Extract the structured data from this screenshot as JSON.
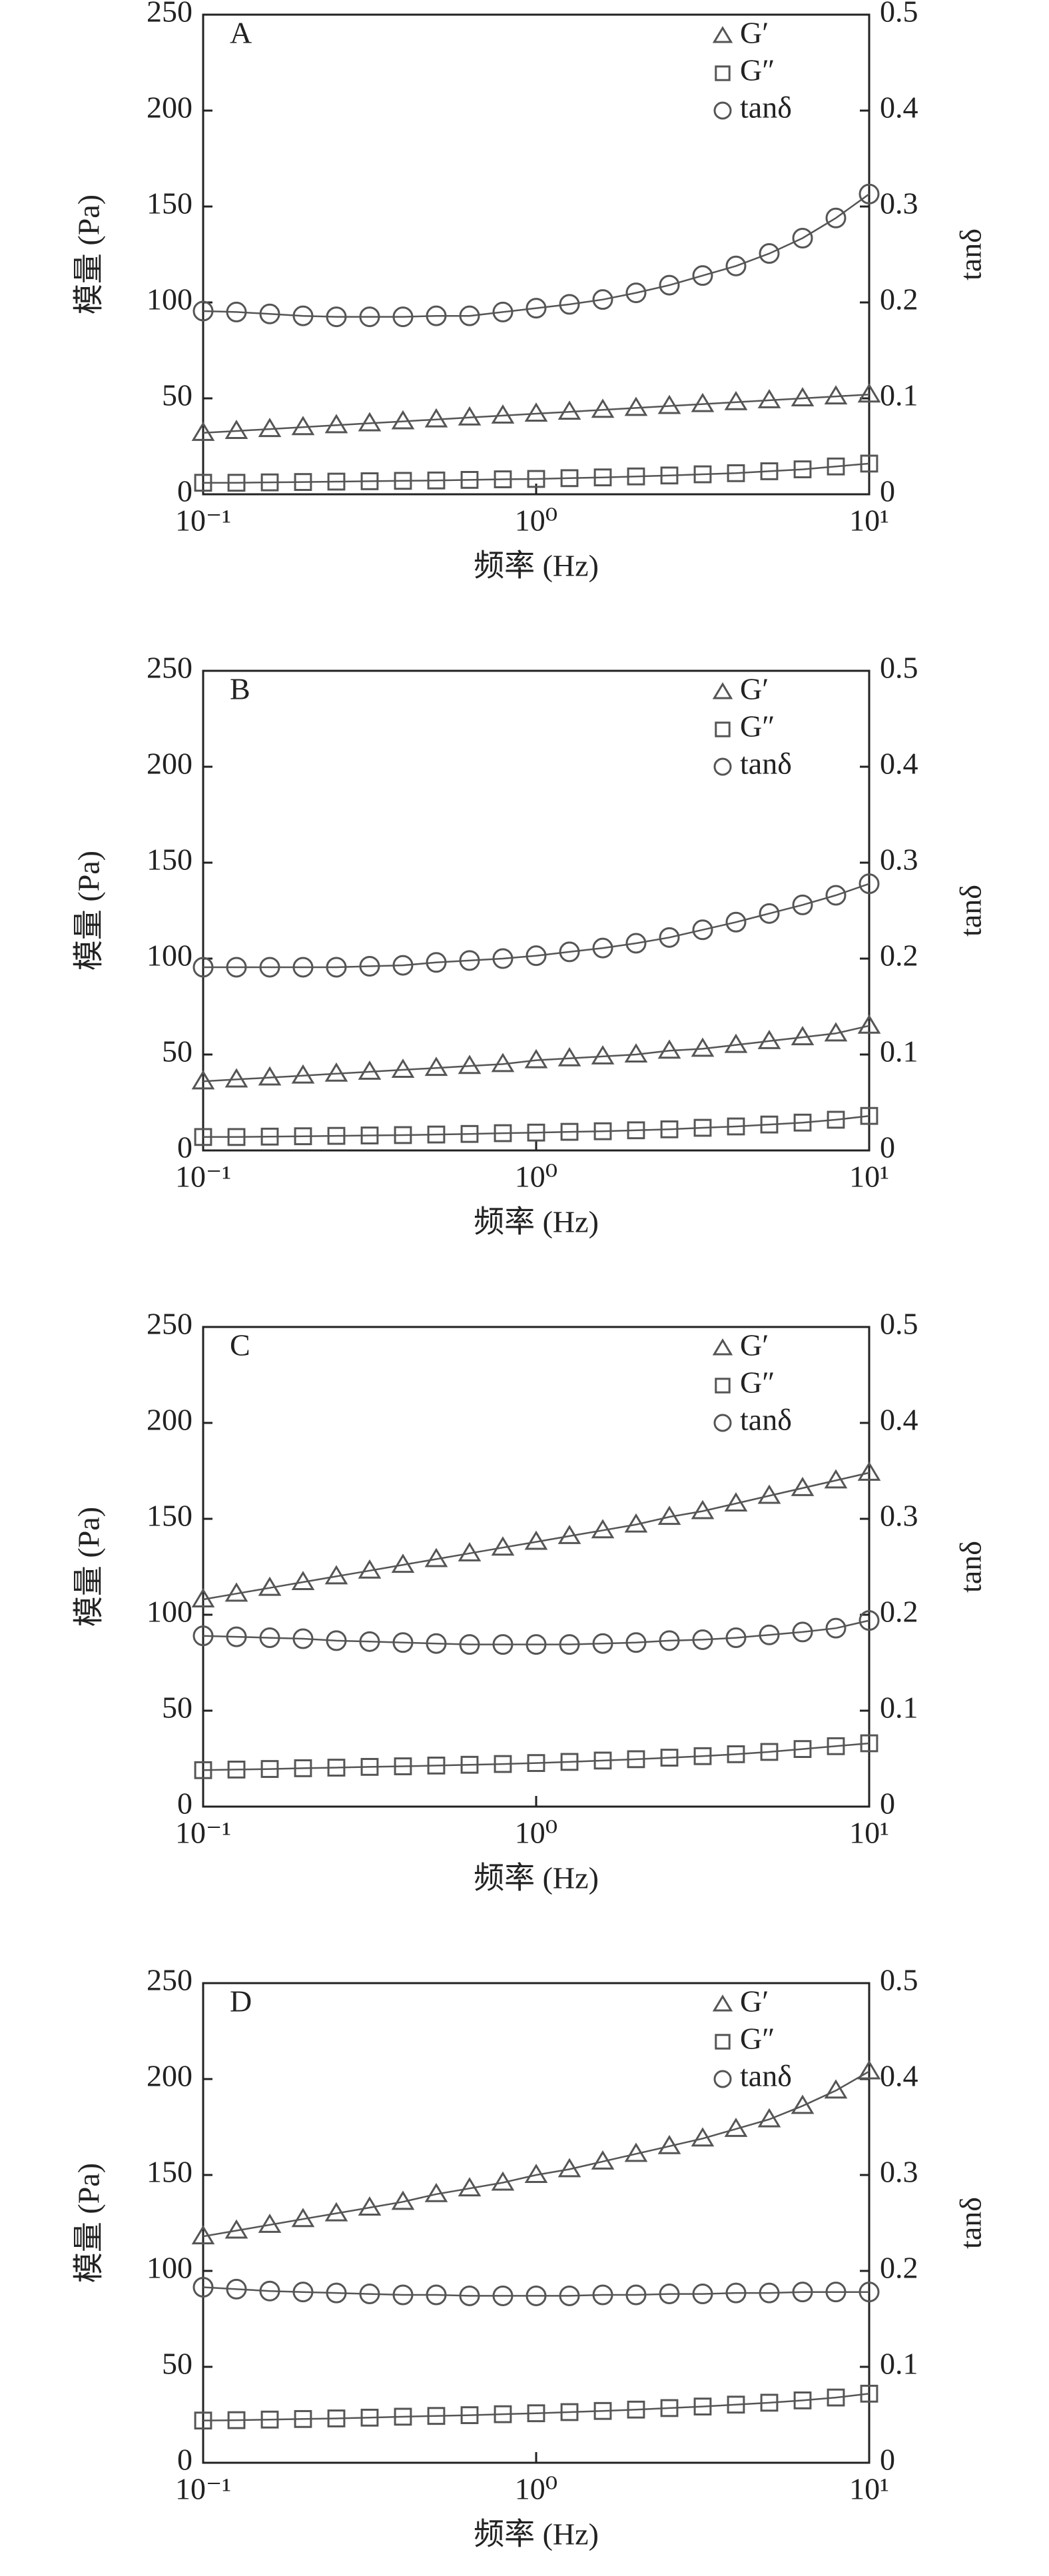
{
  "chart_data": [
    {
      "type": "line",
      "panel_label": "A",
      "xlabel": "频率 (Hz)",
      "ylabel": "模量 (Pa)",
      "y2label": "tanδ",
      "xscale": "log",
      "x": [
        0.1,
        0.1259,
        0.1585,
        0.1995,
        0.2512,
        0.3162,
        0.3981,
        0.5012,
        0.631,
        0.7943,
        1,
        1.259,
        1.585,
        1.995,
        2.512,
        3.162,
        3.981,
        5.012,
        6.31,
        7.943,
        10
      ],
      "xlim": [
        0.1,
        10
      ],
      "xticks": [
        {
          "value": 0.1,
          "label": "10⁻¹"
        },
        {
          "value": 1,
          "label": "10⁰"
        },
        {
          "value": 10,
          "label": "10¹"
        }
      ],
      "ylim": [
        0,
        250
      ],
      "yticks": [
        0,
        50,
        100,
        150,
        200,
        250
      ],
      "y2lim": [
        0,
        0.5
      ],
      "y2ticks": [
        0,
        0.1,
        0.2,
        0.3,
        0.4,
        0.5
      ],
      "legend": "upper right",
      "series": [
        {
          "name": "G′",
          "marker": "triangle",
          "color": "#555555",
          "values": [
            32,
            33,
            34,
            35,
            36,
            37,
            38,
            39,
            40,
            41,
            42,
            43,
            44,
            45,
            46,
            47,
            48,
            49,
            50,
            51,
            52
          ]
        },
        {
          "name": "G″",
          "marker": "square",
          "color": "#555555",
          "values": [
            6,
            6,
            6.2,
            6.4,
            6.6,
            6.8,
            7,
            7.2,
            7.5,
            7.8,
            8,
            8.4,
            8.8,
            9.3,
            9.8,
            10.4,
            11,
            12,
            13,
            14.5,
            16
          ]
        },
        {
          "name": "tanδ",
          "marker": "circle",
          "color": "#555555",
          "axis": "y2",
          "values": [
            0.191,
            0.19,
            0.188,
            0.186,
            0.185,
            0.185,
            0.185,
            0.186,
            0.186,
            0.19,
            0.194,
            0.198,
            0.203,
            0.21,
            0.218,
            0.228,
            0.238,
            0.251,
            0.267,
            0.288,
            0.313
          ]
        }
      ]
    },
    {
      "type": "line",
      "panel_label": "B",
      "xlabel": "频率 (Hz)",
      "ylabel": "模量 (Pa)",
      "y2label": "tanδ",
      "xscale": "log",
      "x": [
        0.1,
        0.1259,
        0.1585,
        0.1995,
        0.2512,
        0.3162,
        0.3981,
        0.5012,
        0.631,
        0.7943,
        1,
        1.259,
        1.585,
        1.995,
        2.512,
        3.162,
        3.981,
        5.012,
        6.31,
        7.943,
        10
      ],
      "xlim": [
        0.1,
        10
      ],
      "xticks": [
        {
          "value": 0.1,
          "label": "10⁻¹"
        },
        {
          "value": 1,
          "label": "10⁰"
        },
        {
          "value": 10,
          "label": "10¹"
        }
      ],
      "ylim": [
        0,
        250
      ],
      "yticks": [
        0,
        50,
        100,
        150,
        200,
        250
      ],
      "y2lim": [
        0,
        0.5
      ],
      "y2ticks": [
        0,
        0.1,
        0.2,
        0.3,
        0.4,
        0.5
      ],
      "legend": "upper right",
      "series": [
        {
          "name": "G′",
          "marker": "triangle",
          "color": "#555555",
          "values": [
            36,
            37,
            38,
            39,
            40,
            41,
            42,
            43,
            44,
            45,
            47,
            48,
            49,
            50,
            52,
            53,
            55,
            57,
            59,
            61,
            65
          ]
        },
        {
          "name": "G″",
          "marker": "square",
          "color": "#555555",
          "values": [
            7,
            7,
            7.2,
            7.4,
            7.6,
            7.8,
            8,
            8.3,
            8.6,
            9,
            9.3,
            9.7,
            10,
            10.5,
            11,
            11.8,
            12.5,
            13.5,
            14.5,
            16,
            18
          ]
        },
        {
          "name": "tanδ",
          "marker": "circle",
          "color": "#555555",
          "axis": "y2",
          "values": [
            0.191,
            0.191,
            0.191,
            0.191,
            0.191,
            0.192,
            0.193,
            0.196,
            0.198,
            0.2,
            0.203,
            0.207,
            0.211,
            0.216,
            0.222,
            0.23,
            0.238,
            0.247,
            0.256,
            0.266,
            0.278
          ]
        }
      ]
    },
    {
      "type": "line",
      "panel_label": "C",
      "xlabel": "频率 (Hz)",
      "ylabel": "模量 (Pa)",
      "y2label": "tanδ",
      "xscale": "log",
      "x": [
        0.1,
        0.1259,
        0.1585,
        0.1995,
        0.2512,
        0.3162,
        0.3981,
        0.5012,
        0.631,
        0.7943,
        1,
        1.259,
        1.585,
        1.995,
        2.512,
        3.162,
        3.981,
        5.012,
        6.31,
        7.943,
        10
      ],
      "xlim": [
        0.1,
        10
      ],
      "xticks": [
        {
          "value": 0.1,
          "label": "10⁻¹"
        },
        {
          "value": 1,
          "label": "10⁰"
        },
        {
          "value": 10,
          "label": "10¹"
        }
      ],
      "ylim": [
        0,
        250
      ],
      "yticks": [
        0,
        50,
        100,
        150,
        200,
        250
      ],
      "y2lim": [
        0,
        0.5
      ],
      "y2ticks": [
        0,
        0.1,
        0.2,
        0.3,
        0.4,
        0.5
      ],
      "legend": "upper right",
      "series": [
        {
          "name": "G′",
          "marker": "triangle",
          "color": "#555555",
          "values": [
            108,
            111,
            114,
            117,
            120,
            123,
            126,
            129,
            132,
            135,
            138,
            141,
            144,
            147,
            151,
            154,
            158,
            162,
            166,
            170,
            174
          ]
        },
        {
          "name": "G″",
          "marker": "square",
          "color": "#555555",
          "values": [
            19,
            19.3,
            19.6,
            20,
            20.3,
            20.7,
            21,
            21.4,
            21.8,
            22.2,
            22.7,
            23.3,
            24,
            24.7,
            25.5,
            26.3,
            27.3,
            28.5,
            30,
            31.5,
            33
          ]
        },
        {
          "name": "tanδ",
          "marker": "circle",
          "color": "#555555",
          "axis": "y2",
          "values": [
            0.178,
            0.177,
            0.176,
            0.175,
            0.173,
            0.172,
            0.171,
            0.17,
            0.169,
            0.169,
            0.169,
            0.169,
            0.17,
            0.171,
            0.173,
            0.174,
            0.176,
            0.179,
            0.182,
            0.186,
            0.194
          ]
        }
      ]
    },
    {
      "type": "line",
      "panel_label": "D",
      "xlabel": "频率 (Hz)",
      "ylabel": "模量 (Pa)",
      "y2label": "tanδ",
      "xscale": "log",
      "x": [
        0.1,
        0.1259,
        0.1585,
        0.1995,
        0.2512,
        0.3162,
        0.3981,
        0.5012,
        0.631,
        0.7943,
        1,
        1.259,
        1.585,
        1.995,
        2.512,
        3.162,
        3.981,
        5.012,
        6.31,
        7.943,
        10
      ],
      "xlim": [
        0.1,
        10
      ],
      "xticks": [
        {
          "value": 0.1,
          "label": "10⁻¹"
        },
        {
          "value": 1,
          "label": "10⁰"
        },
        {
          "value": 10,
          "label": "10¹"
        }
      ],
      "ylim": [
        0,
        250
      ],
      "yticks": [
        0,
        50,
        100,
        150,
        200,
        250
      ],
      "y2lim": [
        0,
        0.5
      ],
      "y2ticks": [
        0,
        0.1,
        0.2,
        0.3,
        0.4,
        0.5
      ],
      "legend": "upper right",
      "series": [
        {
          "name": "G′",
          "marker": "triangle",
          "color": "#555555",
          "values": [
            118,
            121,
            124,
            127,
            130,
            133,
            136,
            140,
            143,
            146,
            150,
            153,
            157,
            161,
            165,
            169,
            174,
            179,
            186,
            194,
            204
          ]
        },
        {
          "name": "G″",
          "marker": "square",
          "color": "#555555",
          "values": [
            22,
            22.2,
            22.5,
            22.8,
            23.1,
            23.5,
            24,
            24.4,
            24.8,
            25.3,
            25.8,
            26.4,
            27,
            27.7,
            28.5,
            29.3,
            30.3,
            31.3,
            32.5,
            34,
            36
          ]
        },
        {
          "name": "tanδ",
          "marker": "circle",
          "color": "#555555",
          "axis": "y2",
          "values": [
            0.183,
            0.181,
            0.179,
            0.178,
            0.177,
            0.176,
            0.175,
            0.175,
            0.174,
            0.174,
            0.174,
            0.174,
            0.175,
            0.175,
            0.176,
            0.176,
            0.177,
            0.177,
            0.178,
            0.178,
            0.178
          ]
        }
      ]
    }
  ]
}
